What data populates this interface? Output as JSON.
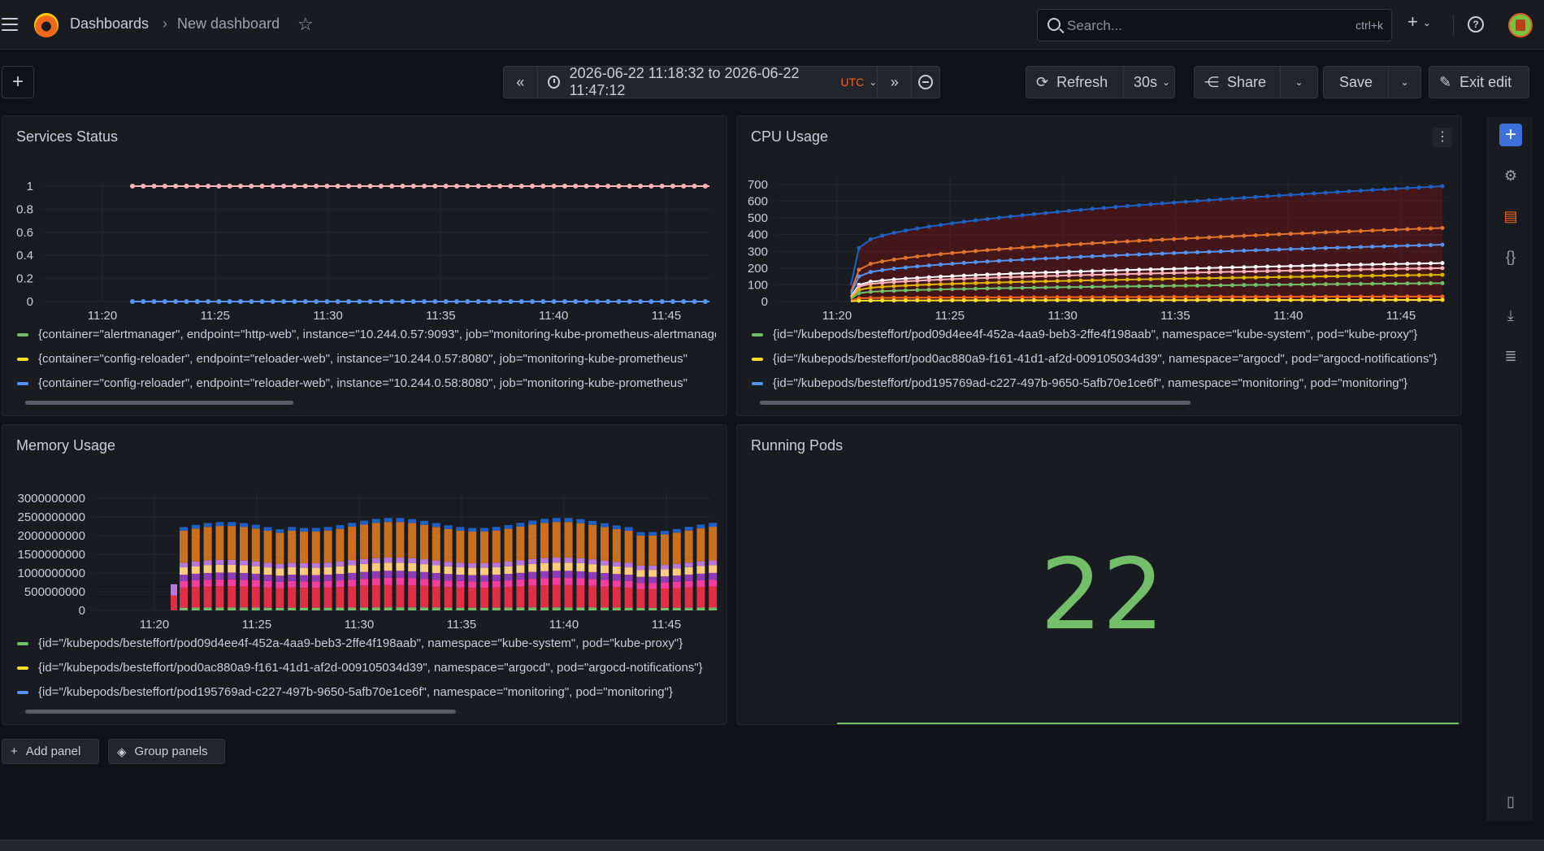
{
  "header": {
    "breadcrumb_home": "Dashboards",
    "breadcrumb_sep": "›",
    "breadcrumb_current": "New dashboard",
    "search_placeholder": "Search...",
    "search_shortcut": "ctrl+k",
    "plus": "+"
  },
  "toolbar": {
    "add": "+",
    "time_range": "2026-06-22 11:18:32 to 2026-06-22 11:47:12",
    "timezone": "UTC",
    "refresh_label": "Refresh",
    "refresh_interval": "30s",
    "share_label": "Share",
    "save_label": "Save",
    "exit_label": "Exit edit"
  },
  "colors": {
    "green": "#73bf69",
    "yellow": "#fade2a",
    "blue": "#5794f2",
    "pink": "#ffb3b8",
    "accent": "#3d71d9"
  },
  "panels": {
    "services": {
      "title": "Services Status",
      "legend": [
        {
          "label": "{container=\"alertmanager\", endpoint=\"http-web\", instance=\"10.244.0.57:9093\", job=\"monitoring-kube-prometheus-alertmanager\"",
          "color": "#73bf69"
        },
        {
          "label": "{container=\"config-reloader\", endpoint=\"reloader-web\", instance=\"10.244.0.57:8080\", job=\"monitoring-kube-prometheus\"",
          "color": "#fade2a"
        },
        {
          "label": "{container=\"config-reloader\", endpoint=\"reloader-web\", instance=\"10.244.0.58:8080\", job=\"monitoring-kube-prometheus\"",
          "color": "#5794f2"
        }
      ]
    },
    "cpu": {
      "title": "CPU Usage",
      "legend": [
        {
          "label": "{id=\"/kubepods/besteffort/pod09d4ee4f-452a-4aa9-beb3-2ffe4f198aab\", namespace=\"kube-system\", pod=\"kube-proxy\"}",
          "color": "#73bf69"
        },
        {
          "label": "{id=\"/kubepods/besteffort/pod0ac880a9-f161-41d1-af2d-009105034d39\", namespace=\"argocd\", pod=\"argocd-notifications\"}",
          "color": "#fade2a"
        },
        {
          "label": "{id=\"/kubepods/besteffort/pod195769ad-c227-497b-9650-5afb70e1ce6f\", namespace=\"monitoring\", pod=\"monitoring\"}",
          "color": "#5794f2"
        }
      ]
    },
    "memory": {
      "title": "Memory Usage",
      "legend": [
        {
          "label": "{id=\"/kubepods/besteffort/pod09d4ee4f-452a-4aa9-beb3-2ffe4f198aab\", namespace=\"kube-system\", pod=\"kube-proxy\"}",
          "color": "#73bf69"
        },
        {
          "label": "{id=\"/kubepods/besteffort/pod0ac880a9-f161-41d1-af2d-009105034d39\", namespace=\"argocd\", pod=\"argocd-notifications\"}",
          "color": "#fade2a"
        },
        {
          "label": "{id=\"/kubepods/besteffort/pod195769ad-c227-497b-9650-5afb70e1ce6f\", namespace=\"monitoring\", pod=\"monitoring\"}",
          "color": "#5794f2"
        }
      ]
    },
    "pods": {
      "title": "Running Pods",
      "value": "22"
    }
  },
  "bottom": {
    "add_panel": "Add panel",
    "group_panels": "Group panels"
  },
  "chart_data": [
    {
      "type": "line",
      "title": "Services Status",
      "x": [
        "11:20",
        "11:25",
        "11:30",
        "11:35",
        "11:40",
        "11:45"
      ],
      "yticks": [
        "0",
        "0.2",
        "0.4",
        "0.6",
        "0.8",
        "1"
      ],
      "ylim": [
        0,
        1
      ],
      "series": [
        {
          "values_constant": 1,
          "color": "#ffb3b8"
        },
        {
          "values_constant": 0,
          "color": "#5794f2"
        }
      ]
    },
    {
      "type": "line",
      "title": "CPU Usage",
      "x": [
        "11:20",
        "11:25",
        "11:30",
        "11:35",
        "11:40",
        "11:45"
      ],
      "yticks": [
        "0",
        "100",
        "200",
        "300",
        "400",
        "500",
        "600",
        "700"
      ],
      "ylim": [
        0,
        700
      ],
      "series": [
        {
          "start": 320,
          "end": 690,
          "color": "#1f60c4"
        },
        {
          "start": 190,
          "end": 440,
          "color": "#e0752d"
        },
        {
          "start": 150,
          "end": 340,
          "color": "#5794f2"
        },
        {
          "start": 100,
          "end": 230,
          "color": "#ffffff"
        },
        {
          "start": 90,
          "end": 200,
          "color": "#ffb3b8"
        },
        {
          "start": 70,
          "end": 160,
          "color": "#e0b400"
        },
        {
          "start": 50,
          "end": 110,
          "color": "#73bf69"
        },
        {
          "start": 20,
          "end": 30,
          "color": "#f2661b"
        },
        {
          "start": 5,
          "end": 10,
          "color": "#fade2a"
        }
      ]
    },
    {
      "type": "bar",
      "title": "Memory Usage",
      "x": [
        "11:20",
        "11:25",
        "11:30",
        "11:35",
        "11:40",
        "11:45"
      ],
      "yticks": [
        "0",
        "500000000",
        "1000000000",
        "1500000000",
        "2000000000",
        "2500000000",
        "3000000000"
      ],
      "ylim": [
        0,
        3000000000
      ],
      "stack_colors": [
        "#73bf69",
        "#e02f44",
        "#f43d9c",
        "#8f3bb8",
        "#ffcb7d",
        "#b877d9",
        "#ca6f1e",
        "#1f60c4"
      ]
    }
  ]
}
